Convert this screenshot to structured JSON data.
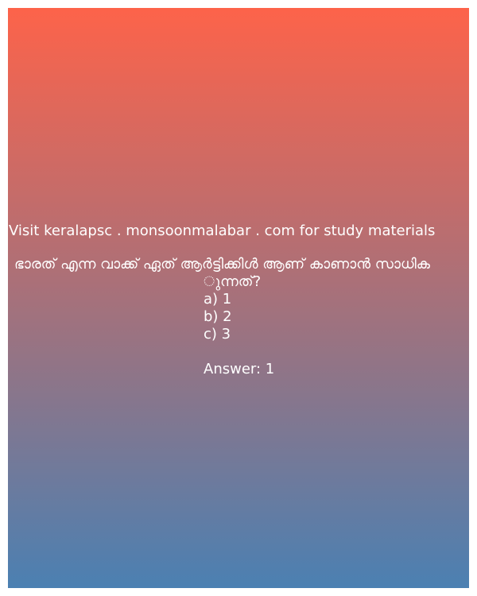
{
  "site_text": "Visit keralapsc . monsoonmalabar . com for study materials",
  "question_line1": "ഭാരത് എന്ന വാക്ക് ഏത് ആർട്ടിക്കിൾ ആണ് കാണാൻ സാധിക",
  "question_line2": "ുന്നത്?",
  "options": [
    "a) 1",
    "b) 2",
    "c) 3"
  ],
  "answer": "Answer: 1",
  "colors": {
    "gradient_top": "#fd634a",
    "gradient_bottom": "#4b80b2",
    "text": "#ffffff"
  }
}
